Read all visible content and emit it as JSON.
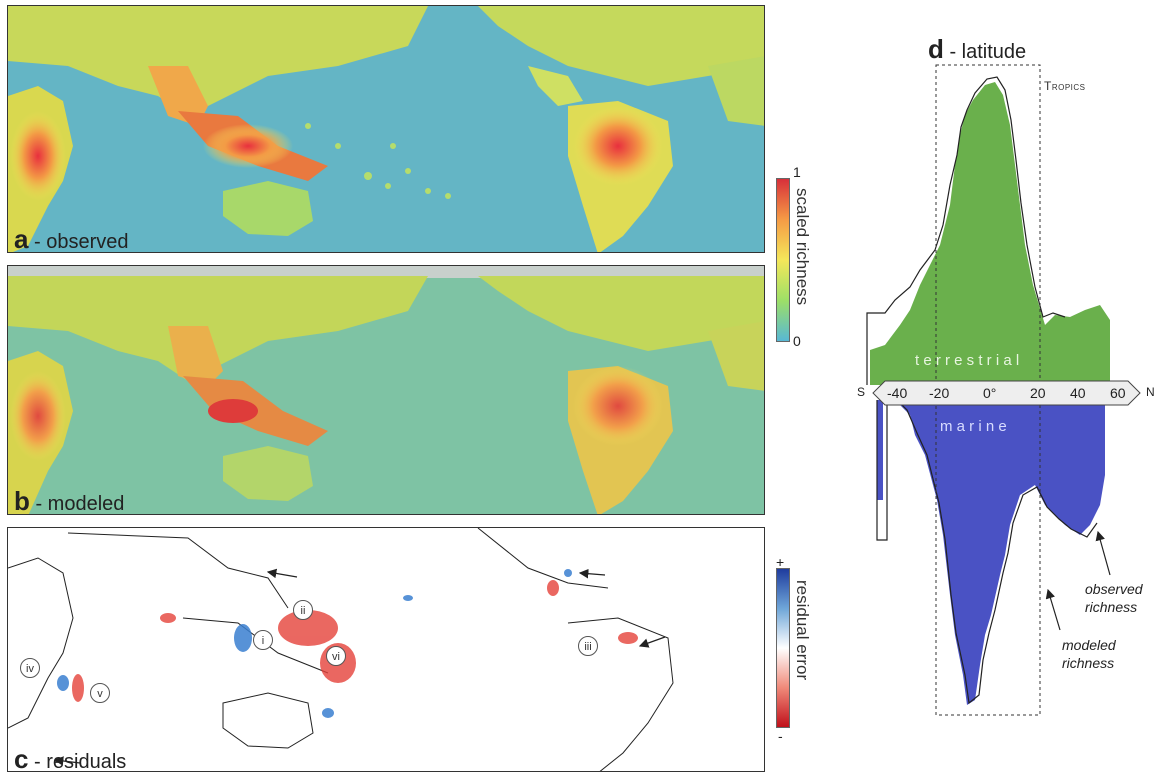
{
  "panels": {
    "a": {
      "letter": "a",
      "label": " - observed"
    },
    "b": {
      "letter": "b",
      "label": " - modeled"
    },
    "c": {
      "letter": "c",
      "label": " - residuals"
    },
    "d": {
      "letter": "d",
      "label": " - latitude"
    }
  },
  "richness_scale": {
    "title": "scaled richness",
    "max": "1",
    "min": "0",
    "colors": [
      "#d7303a",
      "#f59b45",
      "#f4e75a",
      "#9ddf67",
      "#58b8d4"
    ]
  },
  "residual_scale": {
    "title": "residual error",
    "max": "+",
    "min": "-",
    "colors": [
      "#1f3c9e",
      "#6fa6d8",
      "#ffffff",
      "#f08a7a",
      "#c0101a"
    ]
  },
  "residual_markers": [
    "ii",
    "i",
    "vi",
    "iv",
    "v",
    "iii"
  ],
  "latitude": {
    "tropics_label": "Tropics",
    "axis_south": "S",
    "axis_north": "N",
    "ticks": [
      "-40",
      "-20",
      "0°",
      "20",
      "40",
      "60"
    ],
    "terrestrial_label": "t e r r e s t r i a l",
    "marine_label": "m a r i n e",
    "observed_label": [
      "observed",
      "richness"
    ],
    "modeled_label": [
      "modeled",
      "richness"
    ],
    "terrestrial_color": "#6ab04c",
    "marine_color": "#4a52c4"
  }
}
